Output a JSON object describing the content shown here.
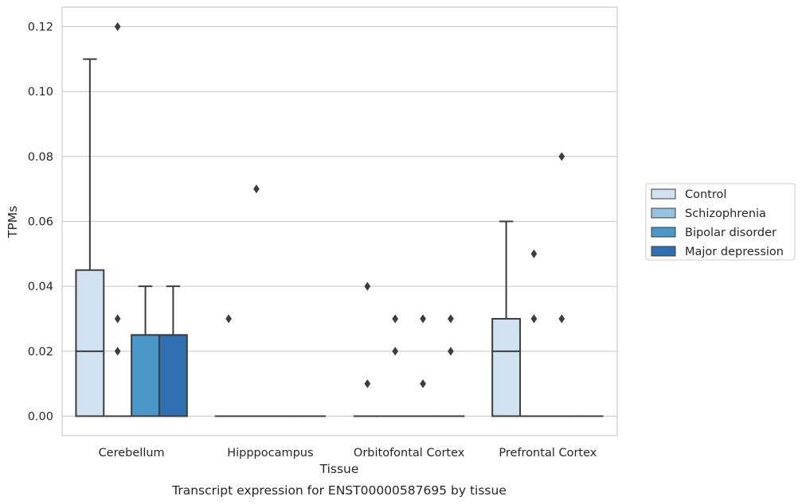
{
  "chart_data": {
    "type": "box",
    "title": "",
    "caption": "Transcript expression for ENST00000587695 by tissue",
    "xlabel": "Tissue",
    "ylabel": "TPMs",
    "ylim": [
      -0.006,
      0.126
    ],
    "yticks": [
      0.0,
      0.02,
      0.04,
      0.06,
      0.08,
      0.1,
      0.12
    ],
    "ytick_labels": [
      "0.00",
      "0.02",
      "0.04",
      "0.06",
      "0.08",
      "0.10",
      "0.12"
    ],
    "grid": "horizontal",
    "legend_position": "right",
    "categories": [
      "Cerebellum",
      "Hipppocampus",
      "Orbitofontal Cortex",
      "Prefrontal Cortex"
    ],
    "series": [
      {
        "name": "Control",
        "color": "#d0e1f2",
        "boxes": [
          {
            "q1": 0,
            "median": 0.02,
            "q3": 0.045,
            "whisker_low": 0,
            "whisker_high": 0.11,
            "outliers": []
          },
          {
            "q1": 0,
            "median": 0,
            "q3": 0,
            "whisker_low": 0,
            "whisker_high": 0,
            "outliers": [
              0.03
            ]
          },
          {
            "q1": 0,
            "median": 0,
            "q3": 0,
            "whisker_low": 0,
            "whisker_high": 0,
            "outliers": [
              0.04,
              0.01
            ]
          },
          {
            "q1": 0,
            "median": 0.02,
            "q3": 0.03,
            "whisker_low": 0,
            "whisker_high": 0.06,
            "outliers": []
          }
        ]
      },
      {
        "name": "Schizophrenia",
        "color": "#94c4df",
        "boxes": [
          {
            "q1": 0,
            "median": 0,
            "q3": 0,
            "whisker_low": 0,
            "whisker_high": 0,
            "outliers": [
              0.12,
              0.03,
              0.02
            ]
          },
          {
            "q1": 0,
            "median": 0,
            "q3": 0,
            "whisker_low": 0,
            "whisker_high": 0,
            "outliers": [
              0.07
            ]
          },
          {
            "q1": 0,
            "median": 0,
            "q3": 0,
            "whisker_low": 0,
            "whisker_high": 0,
            "outliers": [
              0.03,
              0.02
            ]
          },
          {
            "q1": 0,
            "median": 0,
            "q3": 0,
            "whisker_low": 0,
            "whisker_high": 0,
            "outliers": [
              0.05,
              0.03
            ]
          }
        ]
      },
      {
        "name": "Bipolar disorder",
        "color": "#4a98c9",
        "boxes": [
          {
            "q1": 0,
            "median": 0.025,
            "q3": 0.025,
            "whisker_low": 0,
            "whisker_high": 0.04,
            "outliers": []
          },
          {
            "q1": 0,
            "median": 0,
            "q3": 0,
            "whisker_low": 0,
            "whisker_high": 0,
            "outliers": []
          },
          {
            "q1": 0,
            "median": 0,
            "q3": 0,
            "whisker_low": 0,
            "whisker_high": 0,
            "outliers": [
              0.03,
              0.01
            ]
          },
          {
            "q1": 0,
            "median": 0,
            "q3": 0,
            "whisker_low": 0,
            "whisker_high": 0,
            "outliers": [
              0.08,
              0.03
            ]
          }
        ]
      },
      {
        "name": "Major depression",
        "color": "#2e6fb2",
        "boxes": [
          {
            "q1": 0,
            "median": 0.025,
            "q3": 0.025,
            "whisker_low": 0,
            "whisker_high": 0.04,
            "outliers": []
          },
          {
            "q1": 0,
            "median": 0,
            "q3": 0,
            "whisker_low": 0,
            "whisker_high": 0,
            "outliers": []
          },
          {
            "q1": 0,
            "median": 0,
            "q3": 0,
            "whisker_low": 0,
            "whisker_high": 0,
            "outliers": [
              0.03,
              0.02
            ]
          },
          {
            "q1": 0,
            "median": 0,
            "q3": 0,
            "whisker_low": 0,
            "whisker_high": 0,
            "outliers": []
          }
        ]
      }
    ]
  }
}
